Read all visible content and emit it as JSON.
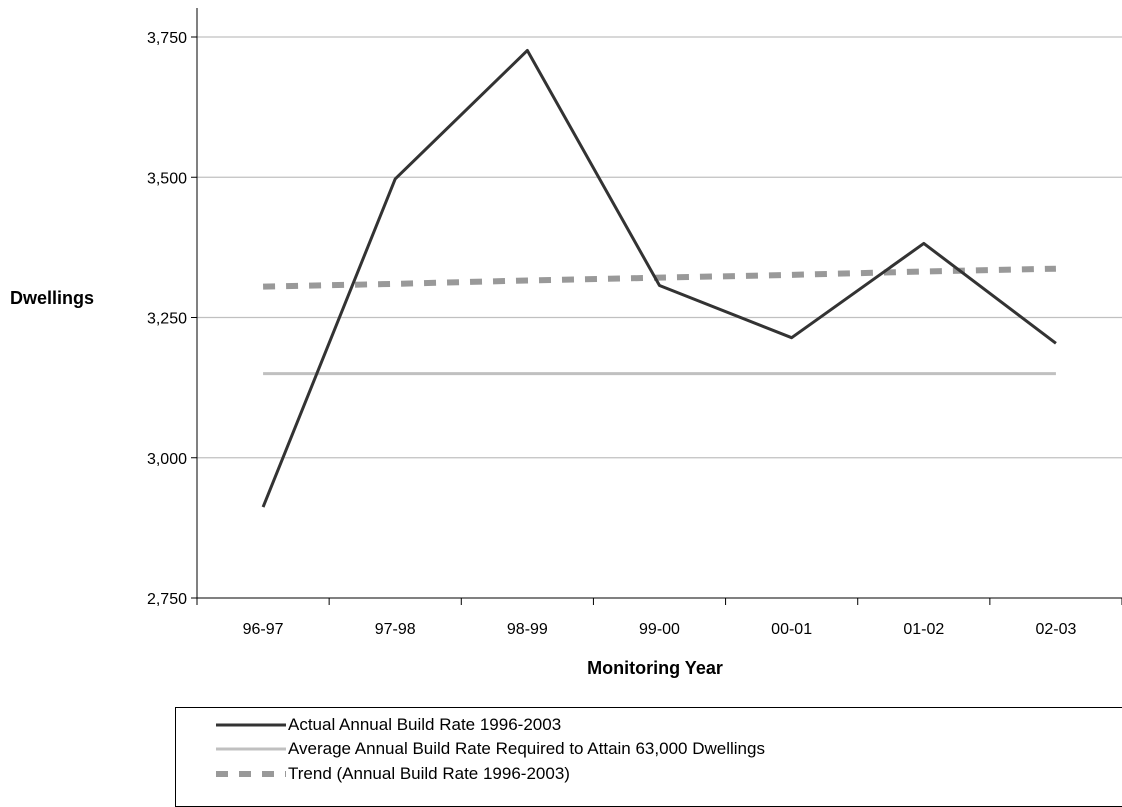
{
  "chart_data": {
    "type": "line",
    "xlabel": "Monitoring Year",
    "ylabel": "Dwellings",
    "categories": [
      "96-97",
      "97-98",
      "98-99",
      "99-00",
      "00-01",
      "01-02",
      "02-03"
    ],
    "ylim": [
      2750,
      3750
    ],
    "yticks": [
      "2,750",
      "3,000",
      "3,250",
      "3,500",
      "3,750"
    ],
    "ytick_values": [
      2750,
      3000,
      3250,
      3500,
      3750
    ],
    "grid": true,
    "legend_position": "bottom",
    "series": [
      {
        "name": "Actual Annual Build Rate 1996-2003",
        "values": [
          2912,
          3497,
          3726,
          3307,
          3214,
          3382,
          3204
        ],
        "color": "#333333",
        "style": "solid"
      },
      {
        "name": "Average Annual Build Rate Required to Attain 63,000 Dwellings",
        "values": [
          3150,
          3150,
          3150,
          3150,
          3150,
          3150,
          3150
        ],
        "color": "#c0c0c0",
        "style": "solid"
      },
      {
        "name": "Trend (Annual Build Rate 1996-2003)",
        "values": [
          3305,
          3310,
          3316,
          3321,
          3326,
          3332,
          3337
        ],
        "color": "#999999",
        "style": "dashed"
      }
    ]
  }
}
